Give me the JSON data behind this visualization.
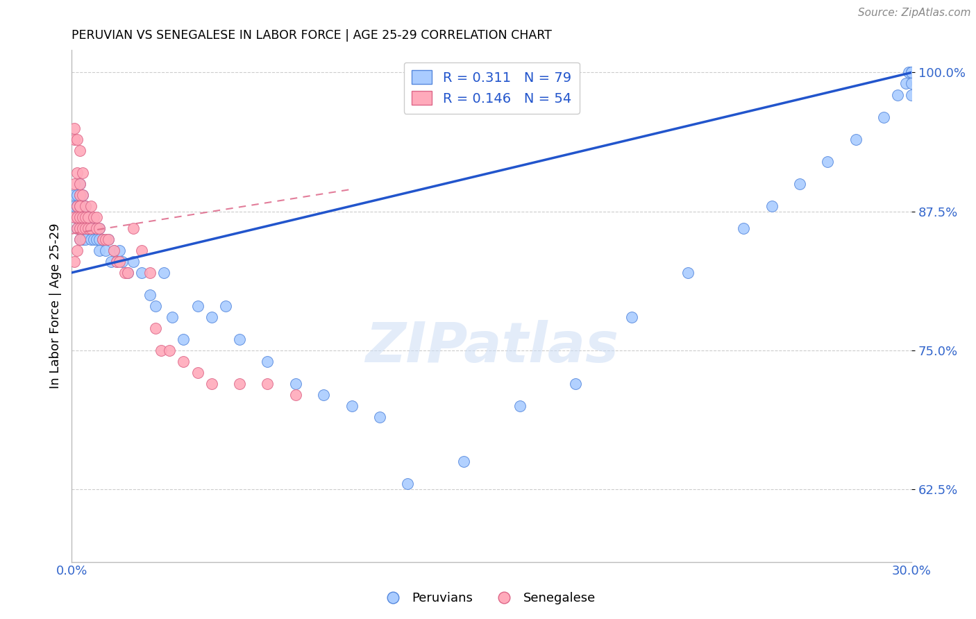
{
  "title": "PERUVIAN VS SENEGALESE IN LABOR FORCE | AGE 25-29 CORRELATION CHART",
  "source": "Source: ZipAtlas.com",
  "ylabel": "In Labor Force | Age 25-29",
  "xlabel": "",
  "xlim": [
    0.0,
    0.3
  ],
  "ylim": [
    0.56,
    1.02
  ],
  "yticks": [
    0.625,
    0.75,
    0.875,
    1.0
  ],
  "ytick_labels": [
    "62.5%",
    "75.0%",
    "87.5%",
    "100.0%"
  ],
  "xticks": [
    0.0,
    0.05,
    0.1,
    0.15,
    0.2,
    0.25,
    0.3
  ],
  "xtick_labels": [
    "0.0%",
    "",
    "",
    "",
    "",
    "",
    "30.0%"
  ],
  "blue_R": 0.311,
  "blue_N": 79,
  "pink_R": 0.146,
  "pink_N": 54,
  "blue_color": "#aaccff",
  "pink_color": "#ffaabb",
  "blue_edge_color": "#5588dd",
  "pink_edge_color": "#dd6688",
  "blue_line_color": "#2255cc",
  "pink_line_color": "#dd6688",
  "axis_color": "#bbbbbb",
  "tick_label_color": "#3366cc",
  "grid_color": "#cccccc",
  "watermark": "ZIPatlas",
  "blue_line_x": [
    0.0,
    0.3
  ],
  "blue_line_y": [
    0.82,
    1.0
  ],
  "pink_line_x": [
    0.0,
    0.1
  ],
  "pink_line_y": [
    0.855,
    0.895
  ],
  "blue_scatter_x": [
    0.001,
    0.001,
    0.001,
    0.002,
    0.002,
    0.002,
    0.002,
    0.002,
    0.003,
    0.003,
    0.003,
    0.003,
    0.003,
    0.003,
    0.003,
    0.004,
    0.004,
    0.004,
    0.004,
    0.004,
    0.005,
    0.005,
    0.005,
    0.005,
    0.006,
    0.006,
    0.007,
    0.007,
    0.008,
    0.008,
    0.009,
    0.009,
    0.01,
    0.01,
    0.01,
    0.011,
    0.012,
    0.013,
    0.014,
    0.015,
    0.016,
    0.017,
    0.018,
    0.02,
    0.022,
    0.025,
    0.028,
    0.03,
    0.033,
    0.036,
    0.04,
    0.045,
    0.05,
    0.055,
    0.06,
    0.07,
    0.08,
    0.09,
    0.1,
    0.11,
    0.12,
    0.14,
    0.16,
    0.18,
    0.2,
    0.22,
    0.24,
    0.25,
    0.26,
    0.27,
    0.28,
    0.29,
    0.295,
    0.298,
    0.299,
    0.3,
    0.3,
    0.3,
    0.3
  ],
  "blue_scatter_y": [
    0.87,
    0.88,
    0.89,
    0.86,
    0.87,
    0.88,
    0.88,
    0.89,
    0.85,
    0.86,
    0.87,
    0.88,
    0.88,
    0.89,
    0.9,
    0.85,
    0.86,
    0.87,
    0.88,
    0.89,
    0.85,
    0.86,
    0.87,
    0.88,
    0.86,
    0.87,
    0.85,
    0.86,
    0.85,
    0.86,
    0.85,
    0.86,
    0.84,
    0.85,
    0.86,
    0.85,
    0.84,
    0.85,
    0.83,
    0.84,
    0.83,
    0.84,
    0.83,
    0.82,
    0.83,
    0.82,
    0.8,
    0.79,
    0.82,
    0.78,
    0.76,
    0.79,
    0.78,
    0.79,
    0.76,
    0.74,
    0.72,
    0.71,
    0.7,
    0.69,
    0.63,
    0.65,
    0.7,
    0.72,
    0.78,
    0.82,
    0.86,
    0.88,
    0.9,
    0.92,
    0.94,
    0.96,
    0.98,
    0.99,
    1.0,
    1.0,
    0.99,
    0.98,
    1.0
  ],
  "pink_scatter_x": [
    0.001,
    0.001,
    0.001,
    0.001,
    0.001,
    0.002,
    0.002,
    0.002,
    0.002,
    0.002,
    0.002,
    0.003,
    0.003,
    0.003,
    0.003,
    0.003,
    0.003,
    0.003,
    0.003,
    0.004,
    0.004,
    0.004,
    0.004,
    0.005,
    0.005,
    0.005,
    0.006,
    0.006,
    0.007,
    0.007,
    0.008,
    0.009,
    0.009,
    0.01,
    0.011,
    0.012,
    0.013,
    0.015,
    0.016,
    0.017,
    0.019,
    0.02,
    0.022,
    0.025,
    0.028,
    0.03,
    0.032,
    0.035,
    0.04,
    0.045,
    0.05,
    0.06,
    0.07,
    0.08
  ],
  "pink_scatter_y": [
    0.94,
    0.9,
    0.95,
    0.87,
    0.83,
    0.91,
    0.88,
    0.87,
    0.86,
    0.84,
    0.94,
    0.93,
    0.9,
    0.89,
    0.88,
    0.88,
    0.87,
    0.86,
    0.85,
    0.91,
    0.89,
    0.87,
    0.86,
    0.88,
    0.87,
    0.86,
    0.87,
    0.86,
    0.88,
    0.86,
    0.87,
    0.87,
    0.86,
    0.86,
    0.85,
    0.85,
    0.85,
    0.84,
    0.83,
    0.83,
    0.82,
    0.82,
    0.86,
    0.84,
    0.82,
    0.77,
    0.75,
    0.75,
    0.74,
    0.73,
    0.72,
    0.72,
    0.72,
    0.71
  ]
}
